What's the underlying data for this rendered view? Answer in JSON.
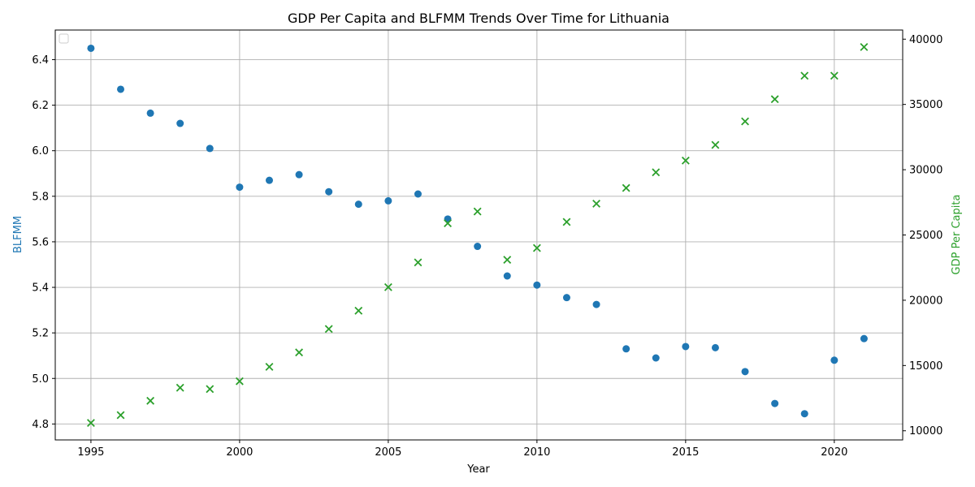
{
  "chart_data": {
    "type": "scatter",
    "title": "GDP Per Capita and BLFMM Trends Over Time for Lithuania",
    "xlabel": "Year",
    "ylabel_left": "BLFMM",
    "ylabel_right": "GDP Per Capita",
    "xlim": [
      1993.8,
      2022.3
    ],
    "ylim_left": [
      4.73,
      6.53
    ],
    "ylim_right": [
      9300,
      40700
    ],
    "x_ticks": [
      1995,
      2000,
      2005,
      2010,
      2015,
      2020
    ],
    "y_ticks_left": [
      4.8,
      5.0,
      5.2,
      5.4,
      5.6,
      5.8,
      6.0,
      6.2,
      6.4
    ],
    "y_ticks_right": [
      10000,
      15000,
      20000,
      25000,
      30000,
      35000,
      40000
    ],
    "x_tick_labels": [
      "1995",
      "2000",
      "2005",
      "2010",
      "2015",
      "2020"
    ],
    "y_tick_labels_left": [
      "4.8",
      "5.0",
      "5.2",
      "5.4",
      "5.6",
      "5.8",
      "6.0",
      "6.2",
      "6.4"
    ],
    "y_tick_labels_right": [
      "10000",
      "15000",
      "20000",
      "25000",
      "30000",
      "35000",
      "40000"
    ],
    "grid": true,
    "legend": "top-left (empty)",
    "x": [
      1995,
      1996,
      1997,
      1998,
      1999,
      2000,
      2001,
      2002,
      2003,
      2004,
      2005,
      2006,
      2007,
      2008,
      2009,
      2010,
      2011,
      2012,
      2013,
      2014,
      2015,
      2016,
      2017,
      2018,
      2019,
      2020,
      2021
    ],
    "series": [
      {
        "axis": "left",
        "marker": "circle",
        "color": "#1f77b4",
        "values": [
          6.45,
          6.27,
          6.165,
          6.12,
          6.01,
          5.84,
          5.87,
          5.895,
          5.82,
          5.765,
          5.78,
          5.81,
          5.7,
          5.58,
          5.45,
          5.41,
          5.355,
          5.325,
          5.13,
          5.09,
          5.14,
          5.135,
          5.03,
          4.89,
          4.845,
          5.08,
          5.175
        ]
      },
      {
        "axis": "right",
        "marker": "x",
        "color": "#2ca02c",
        "values": [
          10600,
          11200,
          12300,
          13300,
          13200,
          13800,
          14900,
          16000,
          17800,
          19200,
          21000,
          22900,
          25900,
          26800,
          23100,
          24000,
          26000,
          27400,
          28600,
          29800,
          30700,
          31900,
          33700,
          35400,
          37200,
          37200,
          39400
        ]
      }
    ]
  }
}
